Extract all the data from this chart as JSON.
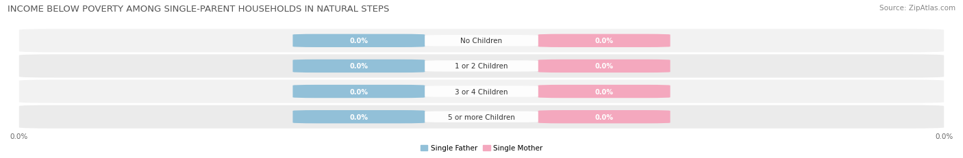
{
  "title": "INCOME BELOW POVERTY AMONG SINGLE-PARENT HOUSEHOLDS IN NATURAL STEPS",
  "source": "Source: ZipAtlas.com",
  "categories": [
    "No Children",
    "1 or 2 Children",
    "3 or 4 Children",
    "5 or more Children"
  ],
  "father_values": [
    0.0,
    0.0,
    0.0,
    0.0
  ],
  "mother_values": [
    0.0,
    0.0,
    0.0,
    0.0
  ],
  "father_color": "#92C0D8",
  "mother_color": "#F4A8BE",
  "row_bg_colors": [
    "#F2F2F2",
    "#EBEBEB",
    "#F2F2F2",
    "#EBEBEB"
  ],
  "row_line_color": "#DDDDDD",
  "title_fontsize": 9.5,
  "source_fontsize": 7.5,
  "label_fontsize": 7.5,
  "cat_fontsize": 7.5,
  "val_fontsize": 7.0,
  "axis_label_left": "0.0%",
  "axis_label_right": "0.0%",
  "legend_father": "Single Father",
  "legend_mother": "Single Mother"
}
